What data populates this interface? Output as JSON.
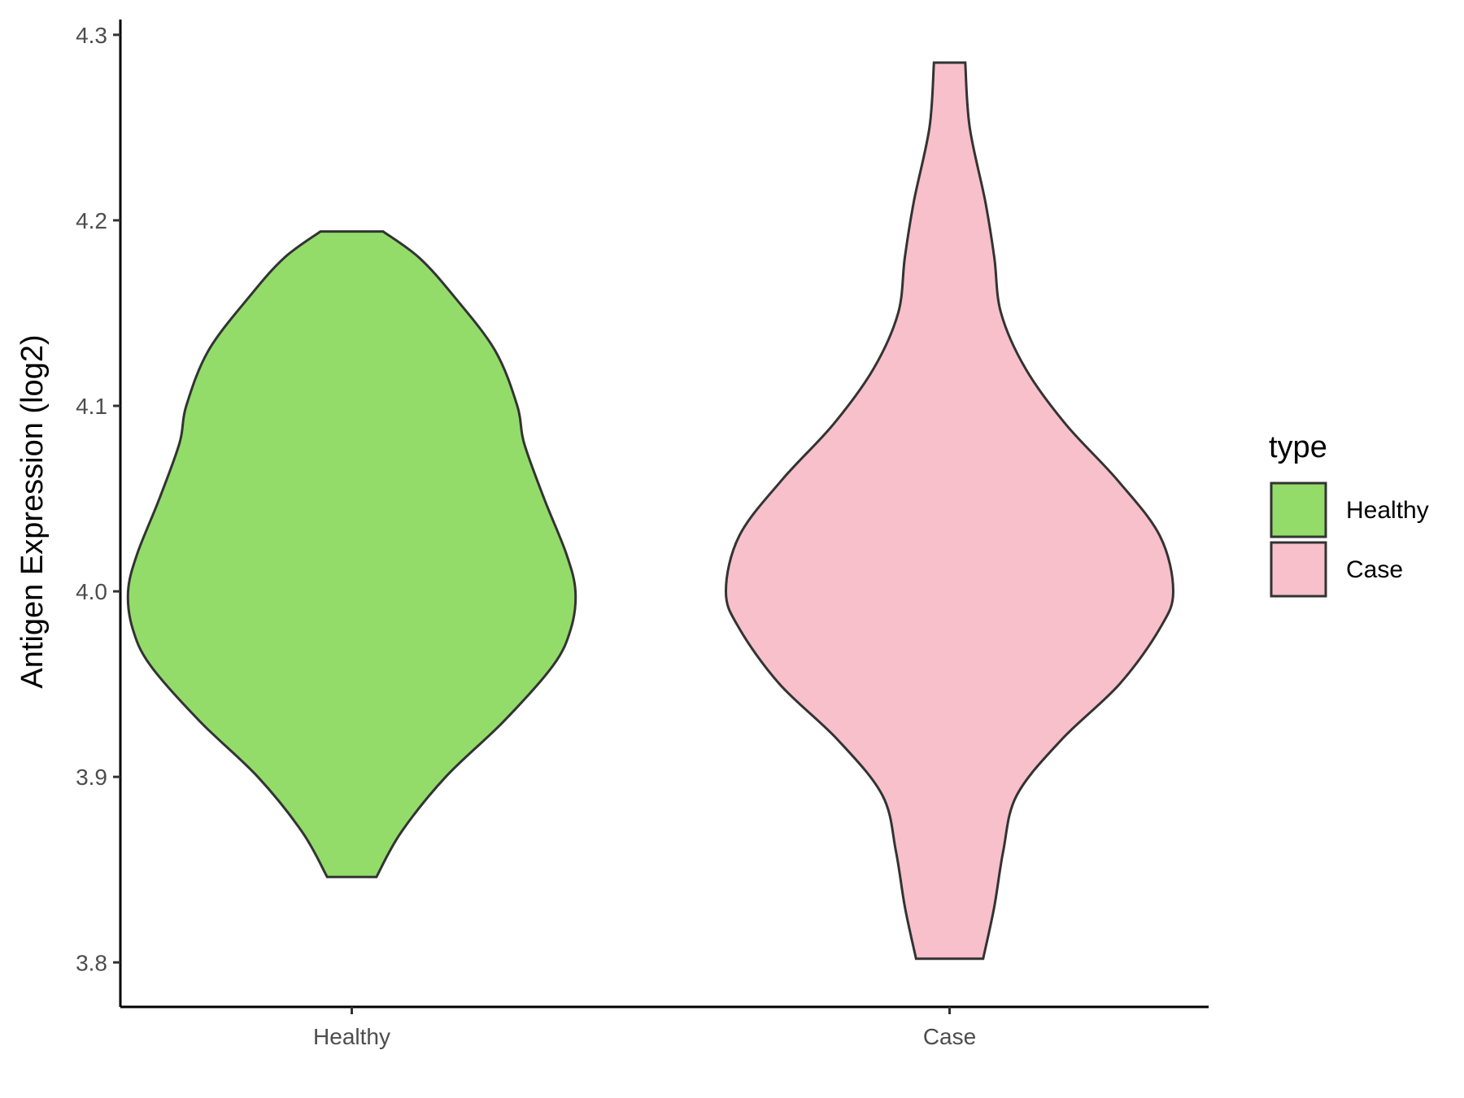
{
  "chart_data": {
    "type": "violin",
    "ylabel": "Antigen Expression (log2)",
    "ylim": [
      3.776,
      4.31
    ],
    "yticks": [
      "3.8",
      "3.9",
      "4.0",
      "4.1",
      "4.2",
      "4.3"
    ],
    "categories": [
      "Healthy",
      "Case"
    ],
    "grid": false,
    "legend": {
      "title": "type",
      "placement": "right",
      "entries": [
        {
          "label": "Healthy",
          "color": "#93DC6A"
        },
        {
          "label": "Case",
          "color": "#F7C0CB"
        }
      ]
    },
    "series": [
      {
        "category": "Healthy",
        "color": "#93DC6A",
        "min": 3.846,
        "max": 4.194,
        "density": [
          [
            3.846,
            0.11
          ],
          [
            3.87,
            0.22
          ],
          [
            3.9,
            0.42
          ],
          [
            3.93,
            0.68
          ],
          [
            3.96,
            0.9
          ],
          [
            3.98,
            0.98
          ],
          [
            4.0,
            1.0
          ],
          [
            4.02,
            0.96
          ],
          [
            4.05,
            0.86
          ],
          [
            4.08,
            0.77
          ],
          [
            4.1,
            0.74
          ],
          [
            4.13,
            0.64
          ],
          [
            4.16,
            0.45
          ],
          [
            4.18,
            0.3
          ],
          [
            4.194,
            0.14
          ]
        ]
      },
      {
        "category": "Case",
        "color": "#F7C0CB",
        "min": 3.802,
        "max": 4.285,
        "density": [
          [
            3.802,
            0.15
          ],
          [
            3.83,
            0.2
          ],
          [
            3.86,
            0.24
          ],
          [
            3.89,
            0.3
          ],
          [
            3.92,
            0.5
          ],
          [
            3.95,
            0.76
          ],
          [
            3.98,
            0.94
          ],
          [
            4.0,
            1.0
          ],
          [
            4.03,
            0.94
          ],
          [
            4.06,
            0.75
          ],
          [
            4.09,
            0.52
          ],
          [
            4.12,
            0.34
          ],
          [
            4.15,
            0.23
          ],
          [
            4.18,
            0.2
          ],
          [
            4.21,
            0.16
          ],
          [
            4.25,
            0.09
          ],
          [
            4.285,
            0.07
          ]
        ]
      }
    ]
  }
}
